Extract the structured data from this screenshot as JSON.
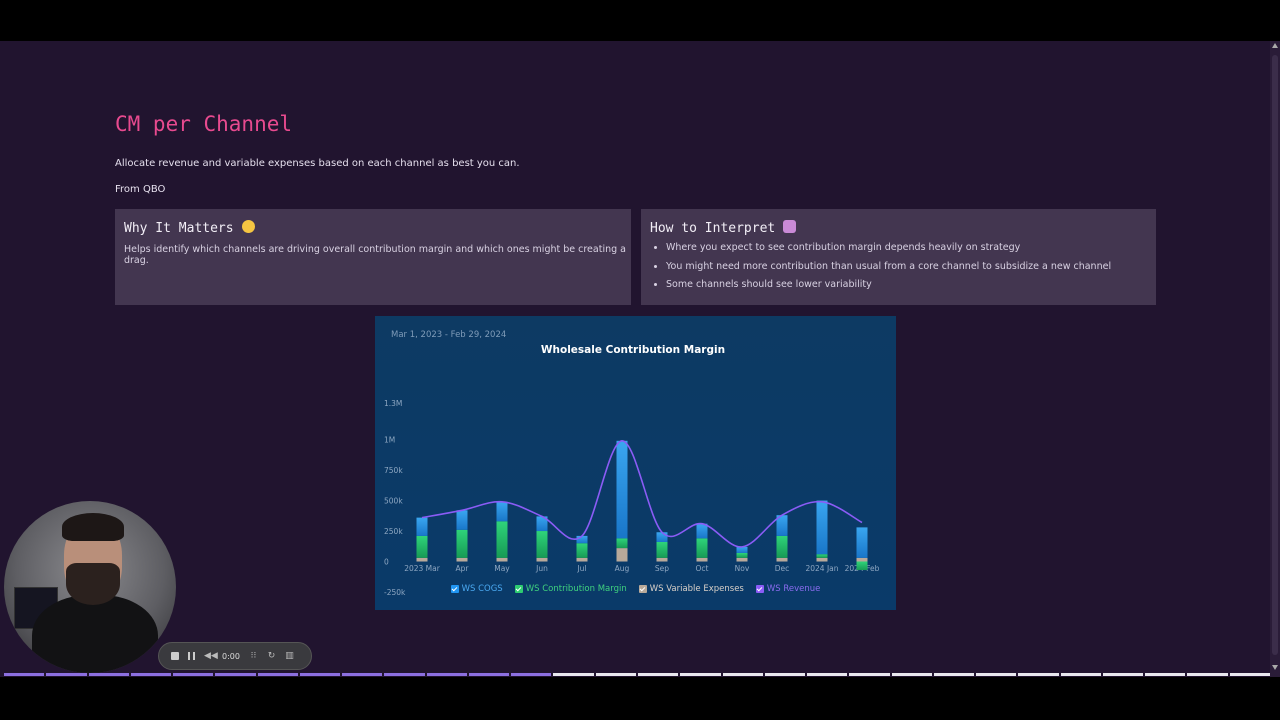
{
  "page": {
    "title": "CM per Channel",
    "subtitle": "Allocate revenue and variable expenses based on each channel as best you can.",
    "source": "From QBO"
  },
  "cards": {
    "why": {
      "title": "Why It Matters",
      "emoji": "thinking-face-icon",
      "text": "Helps identify which channels are driving overall contribution margin and which ones might be creating a drag."
    },
    "how": {
      "title": "How to Interpret",
      "emoji": "mage-icon",
      "bullets": [
        "Where you expect to see contribution margin depends heavily on strategy",
        "You might need more contribution than usual from a core channel to subsidize a new channel",
        "Some channels should see lower variability"
      ]
    }
  },
  "recorder": {
    "time": "0:00"
  },
  "chart_data": {
    "type": "bar",
    "date_range": "Mar 1, 2023 - Feb 29, 2024",
    "title": "Wholesale Contribution Margin",
    "categories": [
      "2023 Mar",
      "Apr",
      "May",
      "Jun",
      "Jul",
      "Aug",
      "Sep",
      "Oct",
      "Nov",
      "Dec",
      "2024 Jan",
      "2024 Feb"
    ],
    "y_ticks": [
      "1.3M",
      "1M",
      "750k",
      "500k",
      "250k",
      "0",
      "-250k"
    ],
    "ylim": [
      -250000,
      1300000
    ],
    "stacked": true,
    "line_overlay": "WS Revenue",
    "series": [
      {
        "name": "WS COGS",
        "type": "bar",
        "color": "#2196f3",
        "values": [
          150000,
          160000,
          160000,
          120000,
          60000,
          800000,
          80000,
          120000,
          50000,
          170000,
          440000,
          250000
        ]
      },
      {
        "name": "WS Contribution Margin",
        "type": "bar",
        "color": "#2ecc71",
        "values": [
          180000,
          230000,
          300000,
          220000,
          120000,
          80000,
          130000,
          160000,
          40000,
          180000,
          30000,
          -70000
        ]
      },
      {
        "name": "WS Variable Expenses",
        "type": "bar",
        "color": "#b8a99a",
        "values": [
          30000,
          30000,
          30000,
          30000,
          30000,
          110000,
          30000,
          30000,
          30000,
          30000,
          30000,
          30000
        ]
      },
      {
        "name": "WS Revenue",
        "type": "line",
        "color": "#8b5cf6",
        "values": [
          360000,
          420000,
          490000,
          370000,
          210000,
          990000,
          240000,
          310000,
          120000,
          380000,
          490000,
          320000
        ]
      }
    ]
  }
}
